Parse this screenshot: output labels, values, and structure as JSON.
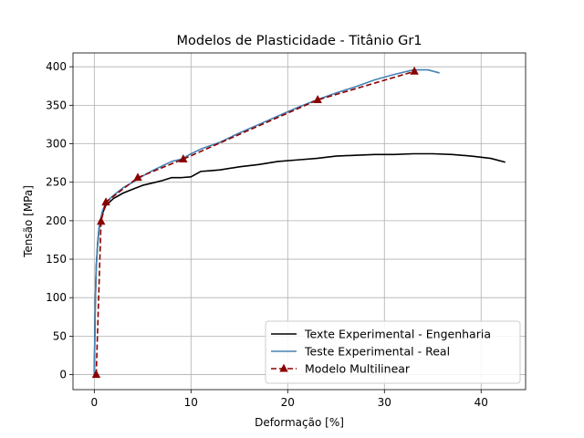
{
  "chart_data": {
    "type": "line",
    "title": "Modelos de Plasticidade - Titânio Gr1",
    "xlabel": "Deformação [%]",
    "ylabel": "Tensão [MPa]",
    "xlim": [
      -2.2,
      44.6
    ],
    "ylim": [
      -19.5,
      418
    ],
    "xticks": [
      0,
      10,
      20,
      30,
      40
    ],
    "yticks": [
      0,
      50,
      100,
      150,
      200,
      250,
      300,
      350,
      400
    ],
    "grid": true,
    "legend_position": "lower-right",
    "series": [
      {
        "name": "Texte Experimental - Engenharia",
        "color": "#000000",
        "style": "solid",
        "marker": "none",
        "x": [
          0,
          0.1,
          0.2,
          0.35,
          0.5,
          0.8,
          1.2,
          2,
          3,
          4,
          5,
          6,
          7,
          8,
          9,
          10,
          11,
          12,
          13,
          15,
          17,
          19,
          21,
          23,
          25,
          27,
          29,
          31,
          33,
          35,
          37,
          39,
          41,
          42.5
        ],
        "y": [
          0,
          90,
          140,
          170,
          190,
          208,
          220,
          229,
          236,
          241,
          246,
          249,
          252,
          256,
          256,
          257,
          264,
          265,
          266,
          270,
          273,
          277,
          279,
          281,
          284,
          285,
          286,
          286,
          287,
          287,
          286,
          284,
          281,
          276
        ]
      },
      {
        "name": "Teste Experimental - Real",
        "color": "#4682b4",
        "style": "solid",
        "marker": "none",
        "x": [
          0,
          0.1,
          0.2,
          0.35,
          0.5,
          0.8,
          1.2,
          2,
          3,
          4,
          5,
          6,
          7,
          8,
          9,
          10,
          11,
          13,
          15,
          17,
          19,
          21,
          23,
          25,
          27,
          29,
          31,
          33,
          34.5,
          35.7
        ],
        "y": [
          0,
          90,
          140,
          172,
          192,
          211,
          224,
          233,
          243,
          250,
          258,
          265,
          271,
          277,
          280,
          287,
          293,
          302,
          314,
          325,
          336,
          347,
          357,
          366,
          374,
          383,
          390,
          396,
          396,
          392
        ]
      },
      {
        "name": "Modelo Multilinear",
        "color": "#8b0000",
        "style": "dashed",
        "marker": "triangle",
        "x": [
          0.2,
          0.7,
          1.2,
          4.5,
          9.2,
          23.1,
          33.1
        ],
        "y": [
          0,
          199,
          224,
          256,
          280,
          357,
          394
        ]
      }
    ]
  }
}
